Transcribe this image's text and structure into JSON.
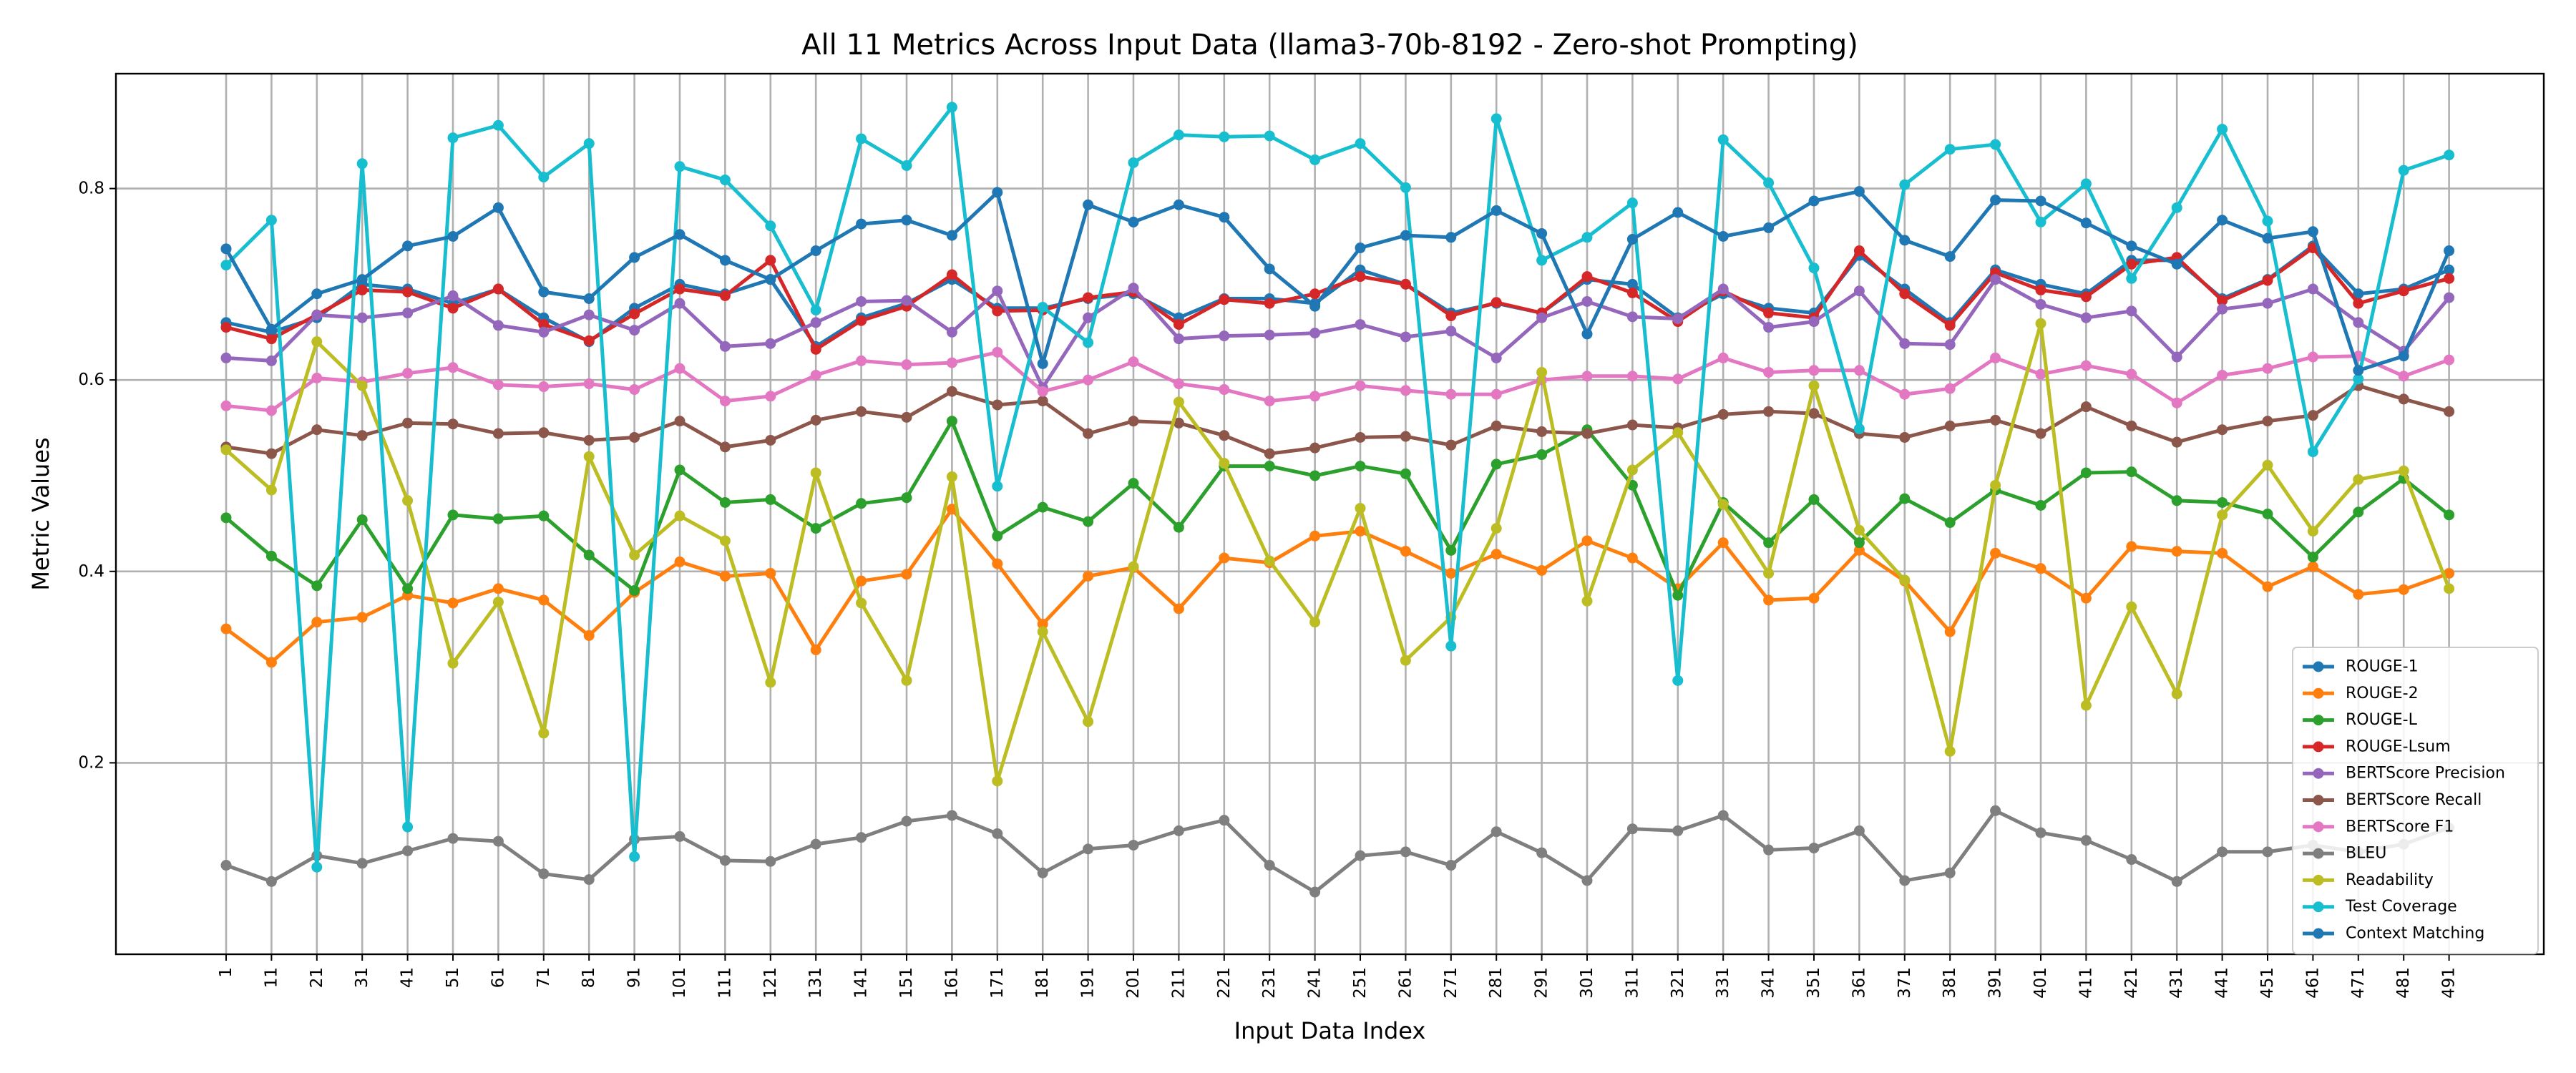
{
  "chart_data": {
    "type": "line",
    "title": "All 11 Metrics Across Input Data (llama3-70b-8192 - Zero-shot Prompting)",
    "xlabel": "Input Data Index",
    "ylabel": "Metric Values",
    "ylim": [
      0.0,
      0.92
    ],
    "yticks": [
      0.2,
      0.4,
      0.6,
      0.8
    ],
    "ytick_labels": [
      "0.2",
      "0.4",
      "0.6",
      "0.8"
    ],
    "grid": true,
    "legend_position": "lower-right",
    "x": [
      "1",
      "11",
      "21",
      "31",
      "41",
      "51",
      "61",
      "71",
      "81",
      "91",
      "101",
      "111",
      "121",
      "131",
      "141",
      "151",
      "161",
      "171",
      "181",
      "191",
      "201",
      "211",
      "221",
      "231",
      "241",
      "251",
      "261",
      "271",
      "281",
      "291",
      "301",
      "311",
      "321",
      "331",
      "341",
      "351",
      "361",
      "371",
      "381",
      "391",
      "401",
      "411",
      "421",
      "431",
      "441",
      "451",
      "461",
      "471",
      "481",
      "491"
    ],
    "series": [
      {
        "name": "ROUGE-1",
        "color": "#1f77b4",
        "values": [
          0.66,
          0.65,
          0.665,
          0.7,
          0.695,
          0.68,
          0.695,
          0.665,
          0.64,
          0.675,
          0.7,
          0.69,
          0.705,
          0.635,
          0.665,
          0.68,
          0.705,
          0.675,
          0.675,
          0.685,
          0.69,
          0.665,
          0.685,
          0.685,
          0.68,
          0.715,
          0.7,
          0.67,
          0.68,
          0.67,
          0.705,
          0.7,
          0.665,
          0.69,
          0.675,
          0.67,
          0.73,
          0.695,
          0.66,
          0.715,
          0.7,
          0.69,
          0.725,
          0.725,
          0.685,
          0.705,
          0.74,
          0.69,
          0.695,
          0.715
        ]
      },
      {
        "name": "ROUGE-2",
        "color": "#ff7f0e",
        "values": [
          0.34,
          0.305,
          0.347,
          0.352,
          0.375,
          0.367,
          0.382,
          0.37,
          0.333,
          0.378,
          0.41,
          0.395,
          0.398,
          0.318,
          0.39,
          0.397,
          0.465,
          0.408,
          0.345,
          0.395,
          0.404,
          0.361,
          0.414,
          0.409,
          0.437,
          0.442,
          0.421,
          0.398,
          0.418,
          0.401,
          0.432,
          0.414,
          0.382,
          0.43,
          0.37,
          0.372,
          0.422,
          0.39,
          0.337,
          0.419,
          0.403,
          0.372,
          0.426,
          0.421,
          0.419,
          0.384,
          0.405,
          0.376,
          0.381,
          0.398
        ]
      },
      {
        "name": "ROUGE-L",
        "color": "#2ca02c",
        "values": [
          0.456,
          0.416,
          0.385,
          0.454,
          0.382,
          0.459,
          0.455,
          0.458,
          0.417,
          0.38,
          0.506,
          0.472,
          0.475,
          0.445,
          0.471,
          0.477,
          0.557,
          0.437,
          0.467,
          0.452,
          0.492,
          0.446,
          0.51,
          0.51,
          0.5,
          0.51,
          0.502,
          0.422,
          0.512,
          0.522,
          0.548,
          0.49,
          0.375,
          0.472,
          0.43,
          0.475,
          0.43,
          0.476,
          0.451,
          0.485,
          0.469,
          0.503,
          0.504,
          0.474,
          0.472,
          0.46,
          0.415,
          0.462,
          0.497,
          0.459
        ]
      },
      {
        "name": "ROUGE-Lsum",
        "color": "#d62728",
        "values": [
          0.655,
          0.643,
          0.668,
          0.694,
          0.692,
          0.675,
          0.695,
          0.658,
          0.641,
          0.669,
          0.695,
          0.688,
          0.725,
          0.632,
          0.662,
          0.677,
          0.71,
          0.672,
          0.673,
          0.686,
          0.692,
          0.658,
          0.684,
          0.68,
          0.69,
          0.708,
          0.7,
          0.667,
          0.681,
          0.67,
          0.708,
          0.691,
          0.661,
          0.693,
          0.67,
          0.665,
          0.735,
          0.69,
          0.657,
          0.712,
          0.694,
          0.687,
          0.721,
          0.728,
          0.683,
          0.704,
          0.738,
          0.68,
          0.693,
          0.706
        ]
      },
      {
        "name": "BERTScore Precision",
        "color": "#9467bd",
        "values": [
          0.623,
          0.62,
          0.668,
          0.665,
          0.67,
          0.688,
          0.657,
          0.65,
          0.668,
          0.652,
          0.68,
          0.635,
          0.638,
          0.66,
          0.682,
          0.683,
          0.65,
          0.693,
          0.592,
          0.665,
          0.696,
          0.643,
          0.646,
          0.647,
          0.649,
          0.658,
          0.645,
          0.651,
          0.623,
          0.665,
          0.682,
          0.666,
          0.664,
          0.695,
          0.655,
          0.661,
          0.693,
          0.638,
          0.637,
          0.705,
          0.679,
          0.665,
          0.672,
          0.624,
          0.674,
          0.68,
          0.695,
          0.66,
          0.63,
          0.686
        ]
      },
      {
        "name": "BERTScore Recall",
        "color": "#8c564b",
        "values": [
          0.53,
          0.523,
          0.548,
          0.542,
          0.555,
          0.554,
          0.544,
          0.545,
          0.537,
          0.54,
          0.557,
          0.53,
          0.537,
          0.558,
          0.567,
          0.561,
          0.588,
          0.574,
          0.578,
          0.544,
          0.557,
          0.555,
          0.542,
          0.523,
          0.529,
          0.54,
          0.541,
          0.532,
          0.552,
          0.546,
          0.544,
          0.553,
          0.55,
          0.564,
          0.567,
          0.565,
          0.544,
          0.54,
          0.552,
          0.558,
          0.544,
          0.572,
          0.552,
          0.535,
          0.548,
          0.557,
          0.563,
          0.594,
          0.58,
          0.567
        ]
      },
      {
        "name": "BERTScore F1",
        "color": "#e377c2",
        "values": [
          0.573,
          0.568,
          0.602,
          0.598,
          0.607,
          0.613,
          0.595,
          0.593,
          0.596,
          0.59,
          0.612,
          0.578,
          0.583,
          0.605,
          0.62,
          0.616,
          0.618,
          0.629,
          0.588,
          0.6,
          0.619,
          0.596,
          0.59,
          0.578,
          0.583,
          0.594,
          0.589,
          0.585,
          0.585,
          0.6,
          0.604,
          0.604,
          0.601,
          0.623,
          0.608,
          0.61,
          0.61,
          0.585,
          0.591,
          0.623,
          0.606,
          0.615,
          0.606,
          0.576,
          0.605,
          0.612,
          0.624,
          0.625,
          0.604,
          0.621
        ]
      },
      {
        "name": "BLEU",
        "color": "#7f7f7f",
        "values": [
          0.093,
          0.076,
          0.103,
          0.095,
          0.108,
          0.121,
          0.118,
          0.084,
          0.078,
          0.12,
          0.123,
          0.098,
          0.097,
          0.115,
          0.122,
          0.139,
          0.145,
          0.126,
          0.085,
          0.11,
          0.114,
          0.129,
          0.14,
          0.093,
          0.065,
          0.103,
          0.107,
          0.093,
          0.128,
          0.106,
          0.077,
          0.131,
          0.129,
          0.145,
          0.109,
          0.111,
          0.129,
          0.077,
          0.085,
          0.15,
          0.127,
          0.119,
          0.099,
          0.076,
          0.107,
          0.107,
          0.114,
          0.107,
          0.115,
          0.132
        ]
      },
      {
        "name": "Readability",
        "color": "#bcbd22",
        "values": [
          0.527,
          0.485,
          0.64,
          0.594,
          0.474,
          0.304,
          0.368,
          0.231,
          0.52,
          0.417,
          0.458,
          0.432,
          0.284,
          0.503,
          0.367,
          0.286,
          0.499,
          0.181,
          0.337,
          0.243,
          0.405,
          0.577,
          0.513,
          0.411,
          0.347,
          0.466,
          0.307,
          0.352,
          0.445,
          0.608,
          0.369,
          0.506,
          0.545,
          0.47,
          0.398,
          0.594,
          0.443,
          0.391,
          0.212,
          0.49,
          0.659,
          0.26,
          0.363,
          0.272,
          0.459,
          0.511,
          0.442,
          0.496,
          0.505,
          0.382
        ]
      },
      {
        "name": "Test Coverage",
        "color": "#17becf",
        "values": [
          0.72,
          0.767,
          0.091,
          0.826,
          0.133,
          0.853,
          0.866,
          0.812,
          0.847,
          0.102,
          0.823,
          0.809,
          0.761,
          0.673,
          0.852,
          0.824,
          0.885,
          0.489,
          0.676,
          0.639,
          0.827,
          0.856,
          0.854,
          0.855,
          0.83,
          0.847,
          0.801,
          0.322,
          0.873,
          0.725,
          0.749,
          0.785,
          0.286,
          0.851,
          0.806,
          0.717,
          0.549,
          0.804,
          0.841,
          0.846,
          0.765,
          0.805,
          0.706,
          0.78,
          0.862,
          0.766,
          0.525,
          0.601,
          0.819,
          0.835
        ]
      },
      {
        "name": "Context Matching",
        "color": "#1f77b4",
        "values": [
          0.737,
          0.653,
          0.69,
          0.705,
          0.74,
          0.75,
          0.78,
          0.692,
          0.685,
          0.728,
          0.752,
          0.725,
          0.705,
          0.735,
          0.763,
          0.767,
          0.751,
          0.796,
          0.617,
          0.783,
          0.765,
          0.783,
          0.77,
          0.716,
          0.677,
          0.738,
          0.751,
          0.749,
          0.777,
          0.753,
          0.648,
          0.747,
          0.775,
          0.75,
          0.759,
          0.787,
          0.797,
          0.746,
          0.729,
          0.788,
          0.787,
          0.764,
          0.74,
          0.721,
          0.767,
          0.748,
          0.755,
          0.61,
          0.625,
          0.735
        ]
      }
    ]
  }
}
